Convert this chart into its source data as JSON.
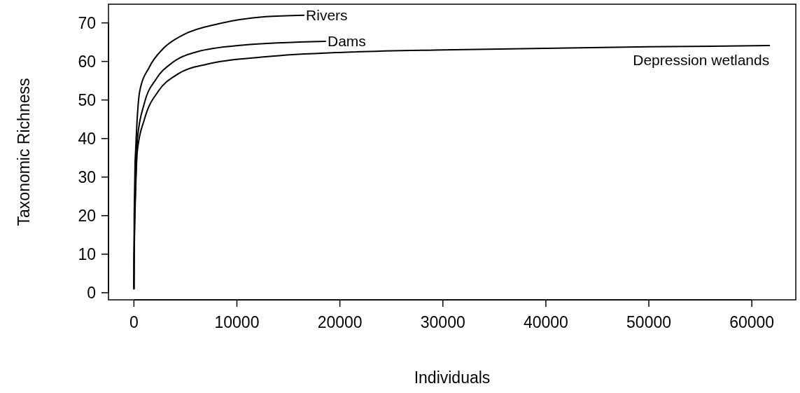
{
  "chart_data": {
    "type": "line",
    "xlabel": "Individuals",
    "ylabel": "Taxonomic Richness",
    "xlim": [
      -2470,
      64270
    ],
    "ylim": [
      -1.84,
      74.84
    ],
    "xticks": [
      0,
      10000,
      20000,
      30000,
      40000,
      50000,
      60000
    ],
    "yticks": [
      0,
      10,
      20,
      30,
      40,
      50,
      60,
      70
    ],
    "grid": false,
    "marker": "none",
    "line_style": "solid",
    "series": [
      {
        "name": "Rivers",
        "color": "#000000",
        "x": [
          1,
          10,
          30,
          50,
          113,
          150,
          340,
          566,
          1470,
          2830,
          4870,
          8270,
          12800,
          16500
        ],
        "values": [
          1,
          8,
          20,
          24,
          33.9,
          36,
          46.1,
          52.3,
          58.4,
          63.3,
          67.0,
          69.8,
          71.6,
          72.0
        ]
      },
      {
        "name": "Dams",
        "color": "#000000",
        "x": [
          1,
          10,
          50,
          150,
          340,
          1020,
          2150,
          3740,
          6000,
          10530,
          18600
        ],
        "values": [
          1,
          7,
          16,
          27,
          40,
          49.2,
          55.4,
          59.7,
          62.4,
          64.2,
          65.2
        ]
      },
      {
        "name": "Depression wetlands",
        "color": "#000000",
        "x": [
          1,
          10,
          50,
          150,
          340,
          1020,
          2380,
          4190,
          7130,
          12800,
          20700,
          30000,
          40000,
          50000,
          61700
        ],
        "values": [
          1,
          6,
          14,
          25,
          37,
          45,
          52.3,
          56.6,
          59.3,
          61.2,
          62.4,
          63.0,
          63.4,
          63.8,
          64.1
        ]
      }
    ]
  }
}
